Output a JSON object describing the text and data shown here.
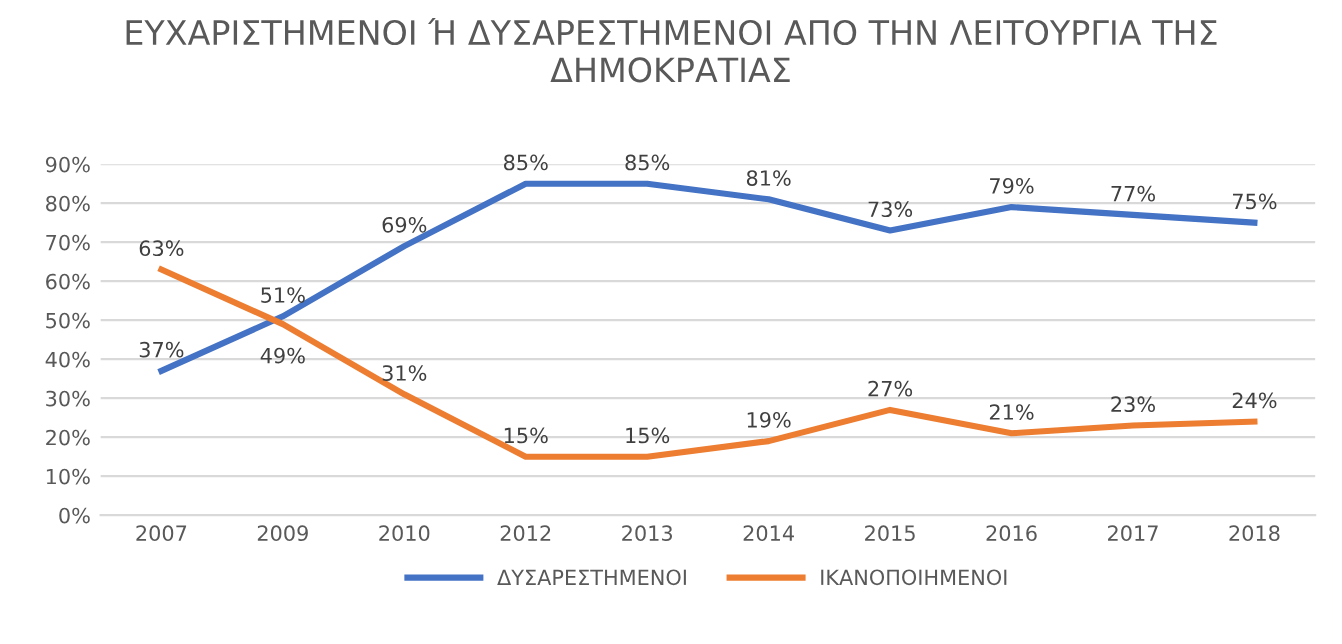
{
  "chart_data": {
    "type": "line",
    "title": "ΕΥΧΑΡΙΣΤΗΜΕΝΟΙ Ή ΔΥΣΑΡΕΣΤΗΜΕΝΟΙ ΑΠΟ ΤΗΝ ΛΕΙΤΟΥΡΓΙΑ ΤΗΣ ΔΗΜΟΚΡΑΤΙΑΣ",
    "categories": [
      "2007",
      "2009",
      "2010",
      "2012",
      "2013",
      "2014",
      "2015",
      "2016",
      "2017",
      "2018"
    ],
    "series": [
      {
        "name": "ΔΥΣΑΡΕΣΤΗΜΕΝΟΙ",
        "color": "#4472c4",
        "values": [
          37,
          51,
          69,
          85,
          85,
          81,
          73,
          79,
          77,
          75
        ],
        "value_labels": [
          "37%",
          "51%",
          "69%",
          "85%",
          "85%",
          "81%",
          "73%",
          "79%",
          "77%",
          "75%"
        ]
      },
      {
        "name": "ΙΚΑΝΟΠΟΙΗΜΕΝΟΙ",
        "color": "#ed7d31",
        "values": [
          63,
          49,
          31,
          15,
          15,
          19,
          27,
          21,
          23,
          24
        ],
        "value_labels": [
          "63%",
          "49%",
          "31%",
          "15%",
          "15%",
          "19%",
          "27%",
          "21%",
          "23%",
          "24%"
        ]
      }
    ],
    "ylim": [
      0,
      90
    ],
    "yticks": [
      {
        "value": 0,
        "label": "0%"
      },
      {
        "value": 10,
        "label": "10%"
      },
      {
        "value": 20,
        "label": "20%"
      },
      {
        "value": 30,
        "label": "30%"
      },
      {
        "value": 40,
        "label": "40%"
      },
      {
        "value": 50,
        "label": "50%"
      },
      {
        "value": 60,
        "label": "60%"
      },
      {
        "value": 70,
        "label": "70%"
      },
      {
        "value": 80,
        "label": "80%"
      },
      {
        "value": 90,
        "label": "90%"
      }
    ],
    "grid": "y",
    "legend": "bottom",
    "marker": "none",
    "line_style": "solid"
  }
}
